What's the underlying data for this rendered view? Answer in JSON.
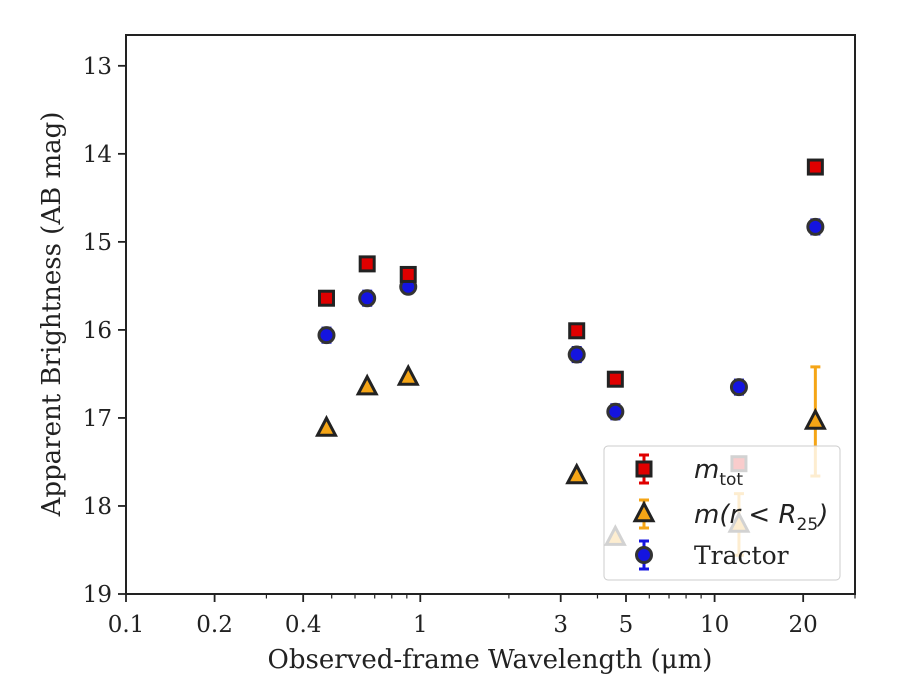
{
  "chart_data": {
    "type": "scatter",
    "xlabel": "Observed-frame Wavelength (μm)",
    "ylabel": "Apparent Brightness (AB mag)",
    "x_scale": "log",
    "xlim": [
      0.1,
      30
    ],
    "ylim": [
      19,
      12.65
    ],
    "y_inverted": true,
    "x_ticks": [
      0.1,
      0.2,
      0.4,
      1,
      3,
      5,
      10,
      20
    ],
    "x_tick_labels": [
      "0.1",
      "0.2",
      "0.4",
      "1",
      "3",
      "5",
      "10",
      "20"
    ],
    "y_ticks": [
      13,
      14,
      15,
      16,
      17,
      18,
      19
    ],
    "y_tick_labels": [
      "13",
      "14",
      "15",
      "16",
      "17",
      "18",
      "19"
    ],
    "grid": false,
    "legend_position": "bottom-right",
    "series": [
      {
        "name": "m_tot",
        "legend_main": "m",
        "legend_sub": "tot",
        "marker": "square",
        "color": "#e00000",
        "edge_color": "#222222",
        "points": [
          {
            "x": 0.48,
            "y": 15.64,
            "err": 0.04
          },
          {
            "x": 0.66,
            "y": 15.25,
            "err": 0.04
          },
          {
            "x": 0.91,
            "y": 15.37,
            "err": 0.04
          },
          {
            "x": 3.4,
            "y": 16.01,
            "err": 0.04
          },
          {
            "x": 4.6,
            "y": 16.56,
            "err": 0.04
          },
          {
            "x": 12.1,
            "y": 17.52,
            "err": 0.04
          },
          {
            "x": 22.0,
            "y": 14.15,
            "err": 0.06
          }
        ]
      },
      {
        "name": "m(r<R25)",
        "legend_main": "m(r < R",
        "legend_sub": "25",
        "legend_end": ")",
        "marker": "triangle",
        "color": "#f5a516",
        "edge_color": "#222222",
        "points": [
          {
            "x": 0.48,
            "y": 17.12,
            "err": 0.0
          },
          {
            "x": 0.66,
            "y": 16.65,
            "err": 0.0
          },
          {
            "x": 0.91,
            "y": 16.54,
            "err": 0.0
          },
          {
            "x": 3.4,
            "y": 17.66,
            "err": 0.0
          },
          {
            "x": 4.6,
            "y": 18.36,
            "err": 0.0
          },
          {
            "x": 12.1,
            "y": 18.21,
            "err": 0.35
          },
          {
            "x": 22.0,
            "y": 17.04,
            "err": 0.62
          }
        ]
      },
      {
        "name": "Tractor",
        "legend_main": "Tractor",
        "marker": "circle",
        "color": "#1414e0",
        "edge_color": "#333333",
        "points": [
          {
            "x": 0.48,
            "y": 16.06,
            "err": 0.08
          },
          {
            "x": 0.66,
            "y": 15.64,
            "err": 0.08
          },
          {
            "x": 0.91,
            "y": 15.51,
            "err": 0.07
          },
          {
            "x": 3.4,
            "y": 16.28,
            "err": 0.08
          },
          {
            "x": 4.6,
            "y": 16.93,
            "err": 0.08
          },
          {
            "x": 12.1,
            "y": 16.65,
            "err": 0.08
          },
          {
            "x": 22.0,
            "y": 14.83,
            "err": 0.08
          }
        ]
      }
    ]
  }
}
